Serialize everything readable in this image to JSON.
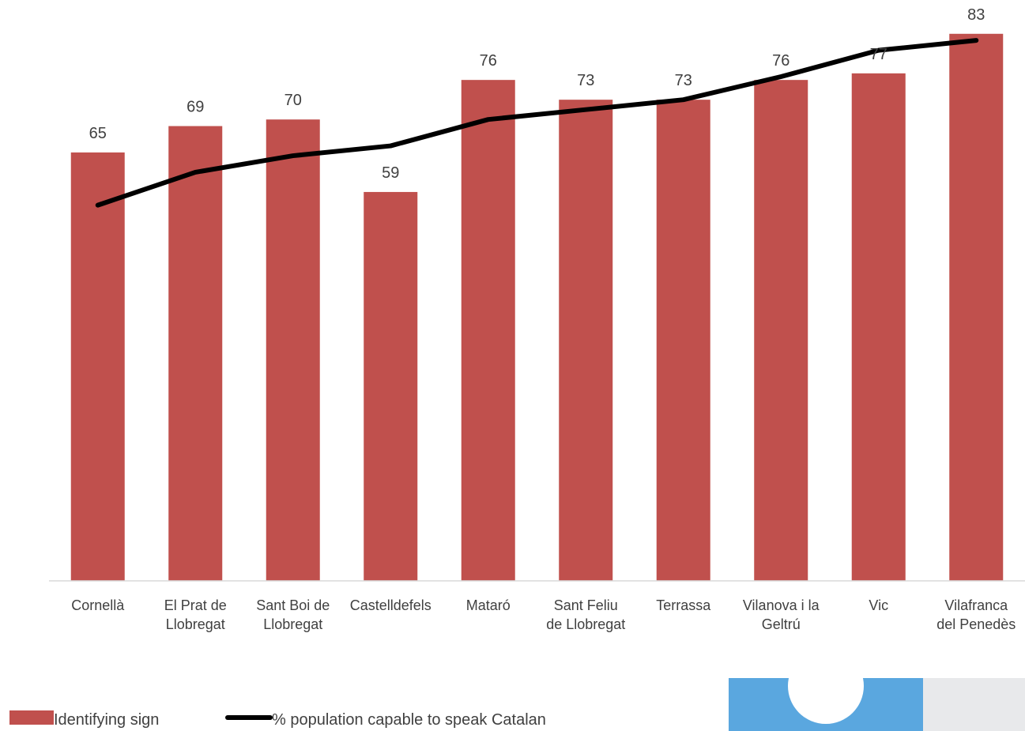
{
  "chart_data": {
    "type": "bar",
    "categories": [
      [
        "Cornellà"
      ],
      [
        "El Prat de",
        "Llobregat"
      ],
      [
        "Sant Boi de",
        "Llobregat"
      ],
      [
        "Castelldefels"
      ],
      [
        "Mataró"
      ],
      [
        "Sant Feliu",
        "de Llobregat"
      ],
      [
        "Terrassa"
      ],
      [
        "Vilanova i la",
        "Geltrú"
      ],
      [
        "Vic"
      ],
      [
        "Vilafranca",
        "del Penedès"
      ]
    ],
    "series": [
      {
        "name": "Identifying sign",
        "type": "bar",
        "color": "#c0504d",
        "values": [
          65,
          69,
          70,
          59,
          76,
          73,
          73,
          76,
          77,
          83
        ]
      },
      {
        "name": "% population capable to speak Catalan",
        "type": "line",
        "color": "#000000",
        "values": [
          57,
          62,
          64.5,
          66,
          70,
          71.5,
          73,
          76.5,
          80.5,
          82
        ]
      }
    ],
    "ylim": [
      0,
      90
    ],
    "grid": false,
    "legend": "bottom-left"
  },
  "decoration": {
    "colors": [
      "#5aa7df",
      "#e8e9eb",
      "#ffffff"
    ]
  }
}
